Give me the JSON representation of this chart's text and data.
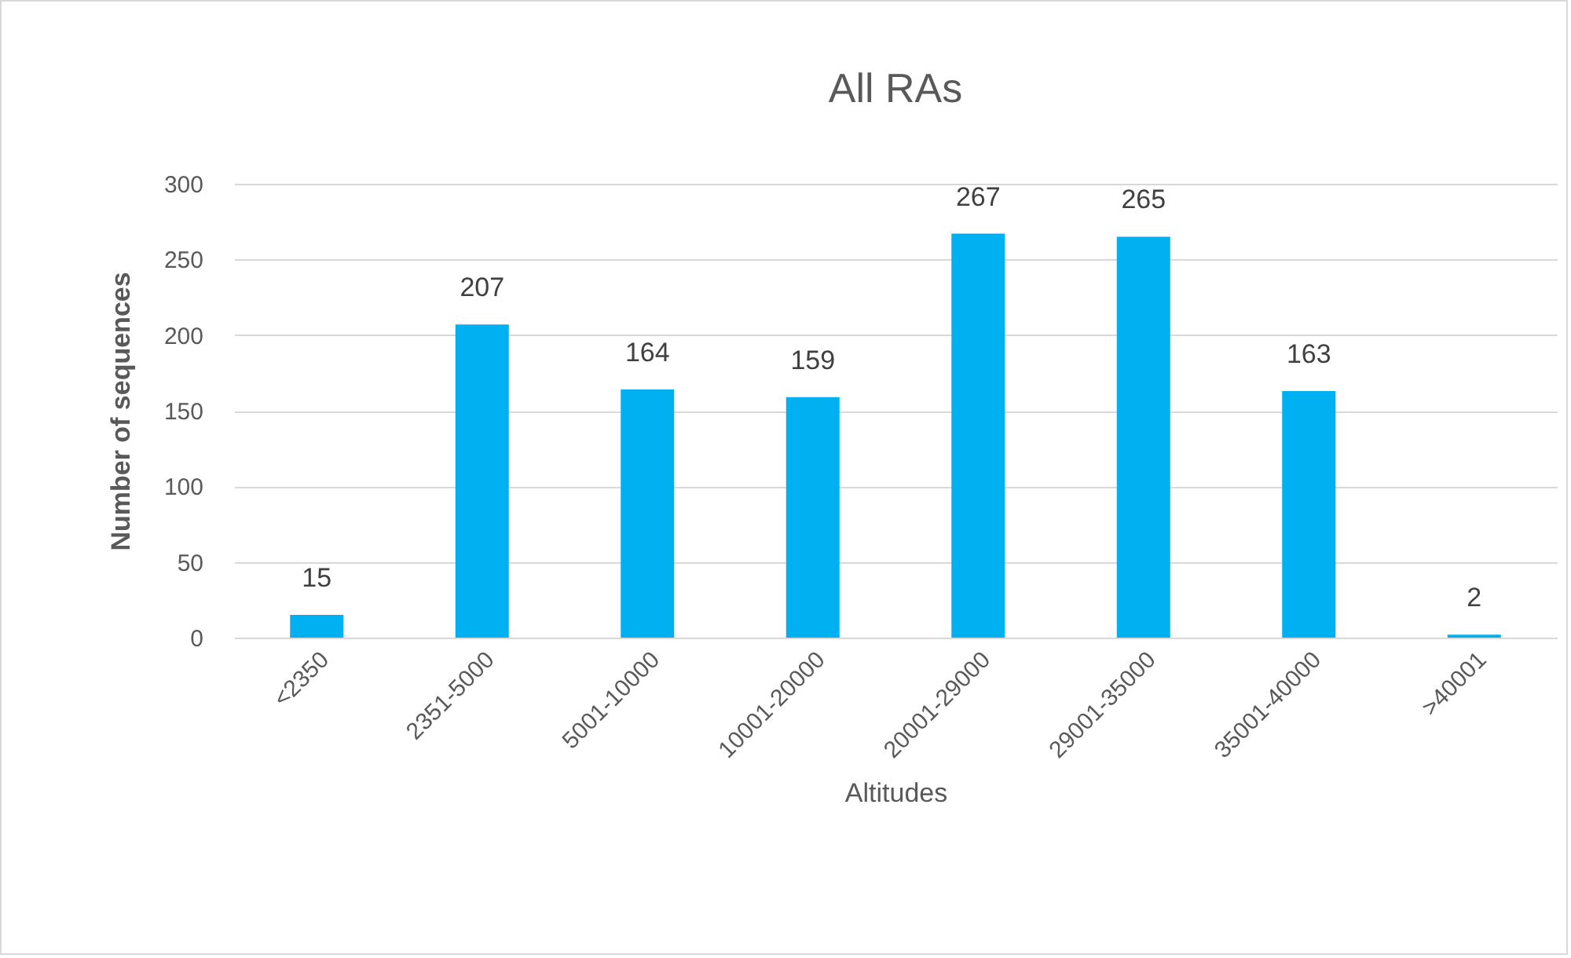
{
  "chart_data": {
    "type": "bar",
    "title": "All RAs",
    "xlabel": "Altitudes",
    "ylabel": "Number of sequences",
    "categories": [
      "<2350",
      "2351-5000",
      "5001-10000",
      "10001-20000",
      "20001-29000",
      "29001-35000",
      "35001-40000",
      ">40001"
    ],
    "values": [
      15,
      207,
      164,
      159,
      267,
      265,
      163,
      2
    ],
    "color": "#00b0f0",
    "ylim": [
      0,
      300
    ],
    "yticks": [
      0,
      50,
      100,
      150,
      200,
      250,
      300
    ],
    "grid": "y",
    "data_labels": true
  }
}
